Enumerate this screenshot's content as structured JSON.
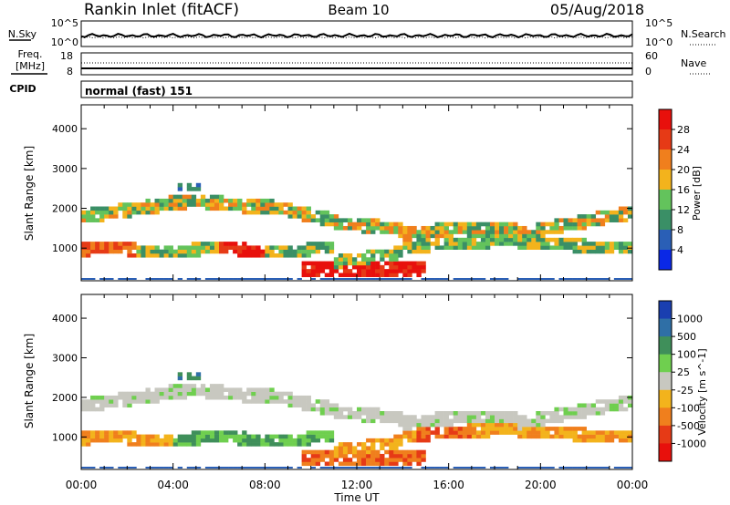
{
  "header": {
    "station": "Rankin Inlet (fitACF)",
    "beam": "Beam 10",
    "date": "05/Aug/2018"
  },
  "noise_panel": {
    "left_label": "N.Sky",
    "right_label": "N.Search",
    "left_ticks": [
      "10^5",
      "10^0"
    ],
    "right_ticks": [
      "10^5",
      "10^0"
    ]
  },
  "freq_panel": {
    "left_label_1": "Freq.",
    "left_label_2": "[MHz]",
    "right_label": "Nave",
    "left_ticks": [
      "18",
      "8"
    ],
    "right_ticks": [
      "60",
      "0"
    ]
  },
  "cpid_panel": {
    "label": "CPID",
    "text": "normal (fast) 151"
  },
  "chart_data": [
    {
      "type": "heatmap",
      "title": "",
      "xlabel": "Time UT",
      "ylabel": "Slant Range [km]",
      "x_ticks": [
        "00:00",
        "04:00",
        "08:00",
        "12:00",
        "16:00",
        "20:00",
        "00:00"
      ],
      "y_ticks": [
        "1000",
        "2000",
        "3000",
        "4000"
      ],
      "ylim": [
        180,
        4600
      ],
      "colorbar_label": "Power [dB]",
      "colorbar_ticks": [
        "4",
        "8",
        "12",
        "16",
        "20",
        "24",
        "28"
      ],
      "colorbar_colors": [
        "#0a28e6",
        "#2a5fb6",
        "#3a8f66",
        "#63c35c",
        "#f3b31c",
        "#f07f1d",
        "#e63a16",
        "#e8100c"
      ]
    },
    {
      "type": "heatmap",
      "title": "",
      "xlabel": "Time UT",
      "ylabel": "Slant Range [km]",
      "x_ticks": [
        "00:00",
        "04:00",
        "08:00",
        "12:00",
        "16:00",
        "20:00",
        "00:00"
      ],
      "y_ticks": [
        "1000",
        "2000",
        "3000",
        "4000"
      ],
      "ylim": [
        180,
        4600
      ],
      "colorbar_label": "Velocity [m s^-1]",
      "colorbar_ticks": [
        "1000",
        "500",
        "100",
        "25",
        "-25",
        "-100",
        "-500",
        "-1000"
      ],
      "colorbar_colors": [
        "#1a3fb0",
        "#2f6fa6",
        "#3f8f5a",
        "#6fcf4f",
        "#c8c8c0",
        "#f3b31c",
        "#f07f1d",
        "#e63a16",
        "#e8100c"
      ]
    }
  ]
}
